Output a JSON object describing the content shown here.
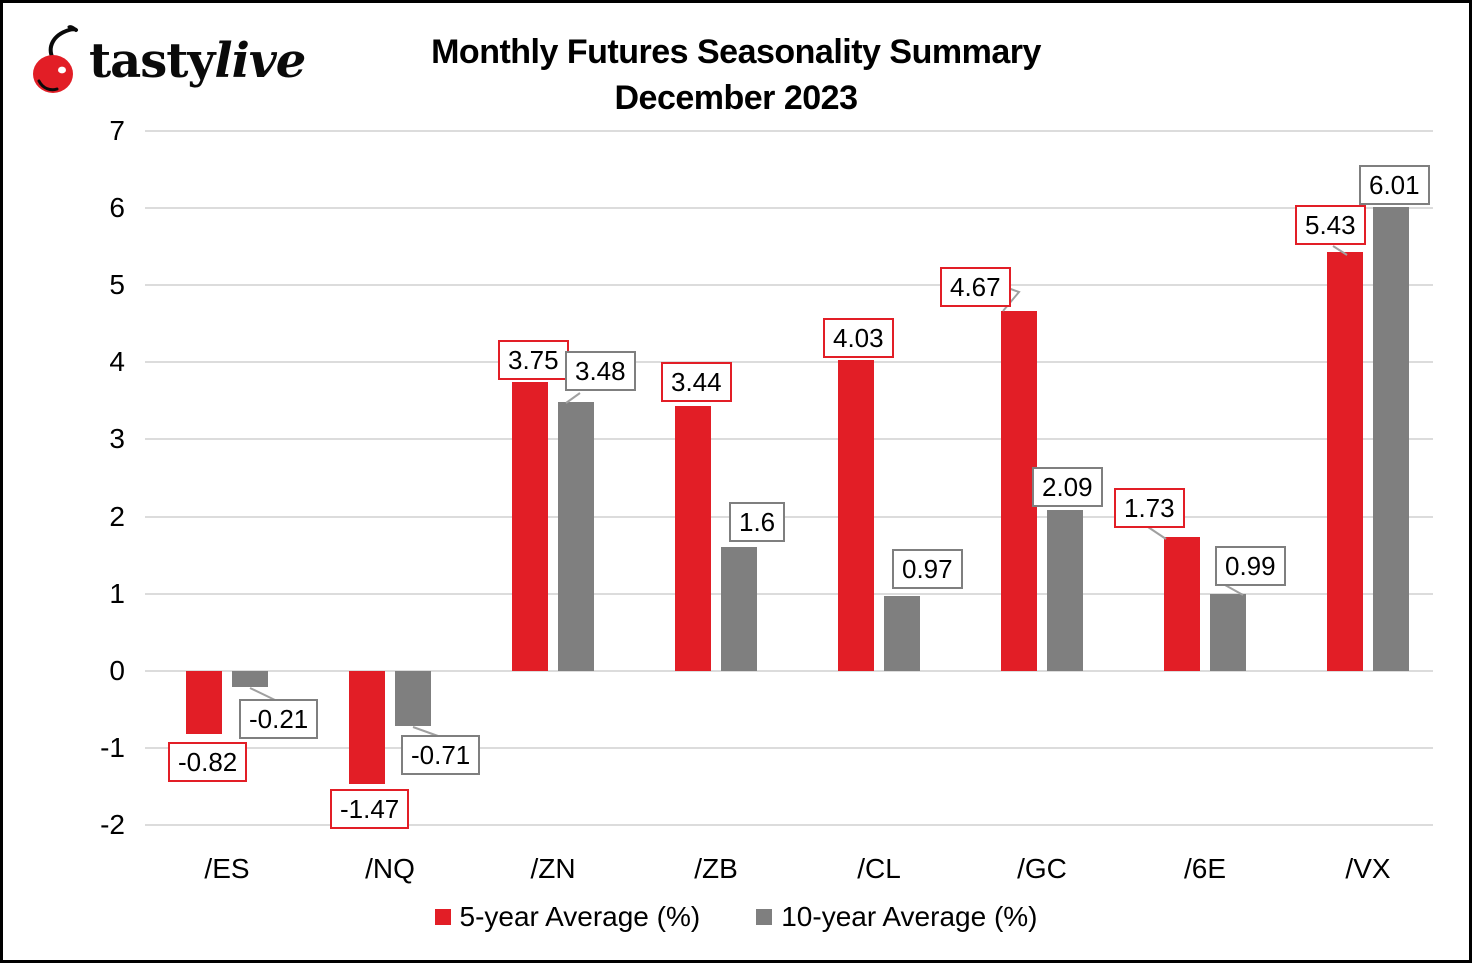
{
  "logo": {
    "brand_first": "tasty",
    "brand_second": "live",
    "cherry_color": "#e21e26"
  },
  "title": {
    "line1": "Monthly Futures Seasonality Summary",
    "line2": "December 2023"
  },
  "chart_data": {
    "type": "bar",
    "title": "Monthly Futures Seasonality Summary December 2023",
    "categories": [
      "/ES",
      "/NQ",
      "/ZN",
      "/ZB",
      "/CL",
      "/GC",
      "/6E",
      "/VX"
    ],
    "series": [
      {
        "name": "5-year Average (%)",
        "color": "#e21e26",
        "values": [
          -0.82,
          -1.47,
          3.75,
          3.44,
          4.03,
          4.67,
          1.73,
          5.43
        ],
        "labels": [
          "-0.82",
          "-1.47",
          "3.75",
          "3.44",
          "4.03",
          "4.67",
          "1.73",
          "5.43"
        ]
      },
      {
        "name": "10-year Average (%)",
        "color": "#7f7f7f",
        "values": [
          -0.21,
          -0.71,
          3.48,
          1.6,
          0.97,
          2.09,
          0.99,
          6.01
        ],
        "labels": [
          "-0.21",
          "-0.71",
          "3.48",
          "1.6",
          "0.97",
          "2.09",
          "0.99",
          "6.01"
        ]
      }
    ],
    "xlabel": "",
    "ylabel": "",
    "ylim": [
      -2,
      7
    ],
    "yticks": [
      7,
      6,
      5,
      4,
      3,
      2,
      1,
      0,
      -1,
      -2
    ],
    "grid": true,
    "gridline_color": "#dcdcdc",
    "data_labels": true,
    "legend_position": "bottom"
  }
}
